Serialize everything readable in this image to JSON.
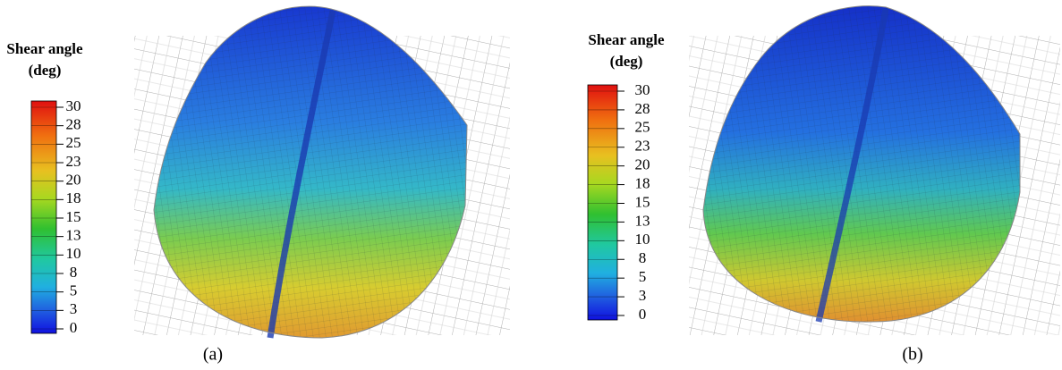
{
  "panels": [
    {
      "legend_title": "Shear angle",
      "legend_unit": "(deg)",
      "legend_ticks": [
        30,
        28,
        25,
        23,
        20,
        18,
        15,
        13,
        10,
        8,
        5,
        3,
        0
      ],
      "caption": "(a)"
    },
    {
      "legend_title": "Shear angle",
      "legend_unit": "(deg)",
      "legend_ticks": [
        30,
        28,
        25,
        23,
        20,
        18,
        15,
        13,
        10,
        8,
        5,
        3,
        0
      ],
      "caption": "(b)"
    }
  ]
}
